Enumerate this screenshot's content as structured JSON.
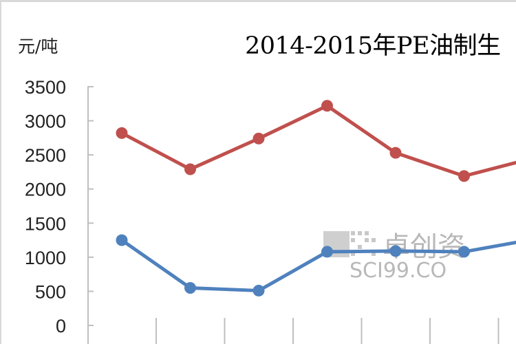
{
  "chart_data": {
    "type": "line",
    "title": "2014-2015年PE油制生",
    "ylabel": "元/吨",
    "xlabel": "",
    "ylim": [
      0,
      3500
    ],
    "yticks": [
      0,
      500,
      1000,
      1500,
      2000,
      2500,
      3000,
      3500
    ],
    "ytick_labels": [
      "0",
      "500",
      "1000",
      "1500",
      "2000",
      "2500",
      "3000",
      "3500"
    ],
    "grid": false,
    "x": [
      1,
      2,
      3,
      4,
      5,
      6,
      7
    ],
    "series": [
      {
        "color": "#c0504d",
        "values": [
          2820,
          2290,
          2740,
          3220,
          2530,
          2190,
          2450
        ]
      },
      {
        "color": "#4f81bd",
        "values": [
          1250,
          550,
          510,
          1080,
          1090,
          1080,
          1260
        ]
      }
    ]
  },
  "watermark": {
    "text_cn": "卓创资",
    "text_en": "SCI99.CO"
  },
  "colors": {
    "axis": "#bfbfbf",
    "watermark": "#b8b8b8"
  }
}
